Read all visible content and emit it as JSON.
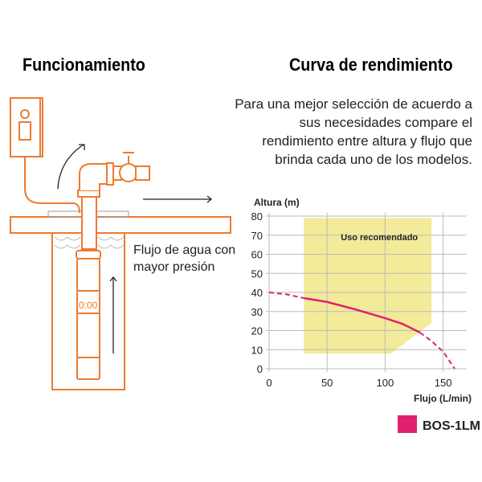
{
  "left": {
    "title": "Funcionamiento",
    "flow_label_line1": "Flujo de agua con",
    "flow_label_line2": "mayor presión",
    "pump_display": "0:00"
  },
  "right": {
    "title": "Curva de rendimiento",
    "description": "Para una mejor selección de acuerdo a sus necesidades compare el rendimiento entre altura y flujo que brinda cada uno de los modelos."
  },
  "colors": {
    "outline": "#ee7a32",
    "curve": "#e0226e",
    "zone": "#f3ea9a",
    "arrow": "#222222"
  },
  "chart_data": {
    "type": "line",
    "xlabel": "Flujo (L/min)",
    "ylabel": "Altura (m)",
    "xlim": [
      0,
      170
    ],
    "ylim": [
      0,
      80
    ],
    "xticks": [
      0,
      50,
      100,
      150
    ],
    "yticks": [
      0,
      10,
      20,
      30,
      40,
      50,
      60,
      70,
      80
    ],
    "grid": true,
    "zone": {
      "label": "Uso recomendado",
      "polygon": [
        [
          30,
          79
        ],
        [
          140,
          79
        ],
        [
          140,
          24
        ],
        [
          105,
          8
        ],
        [
          30,
          8
        ]
      ]
    },
    "series": [
      {
        "name": "BOS-1LM",
        "x": [
          0,
          15,
          30,
          50,
          75,
          100,
          115,
          130,
          140,
          150,
          160
        ],
        "y": [
          40,
          39,
          37,
          35,
          31,
          26.5,
          23.5,
          19,
          14.5,
          9,
          0
        ],
        "solid_range": [
          30,
          130
        ]
      }
    ],
    "legend": "bottom-right"
  }
}
